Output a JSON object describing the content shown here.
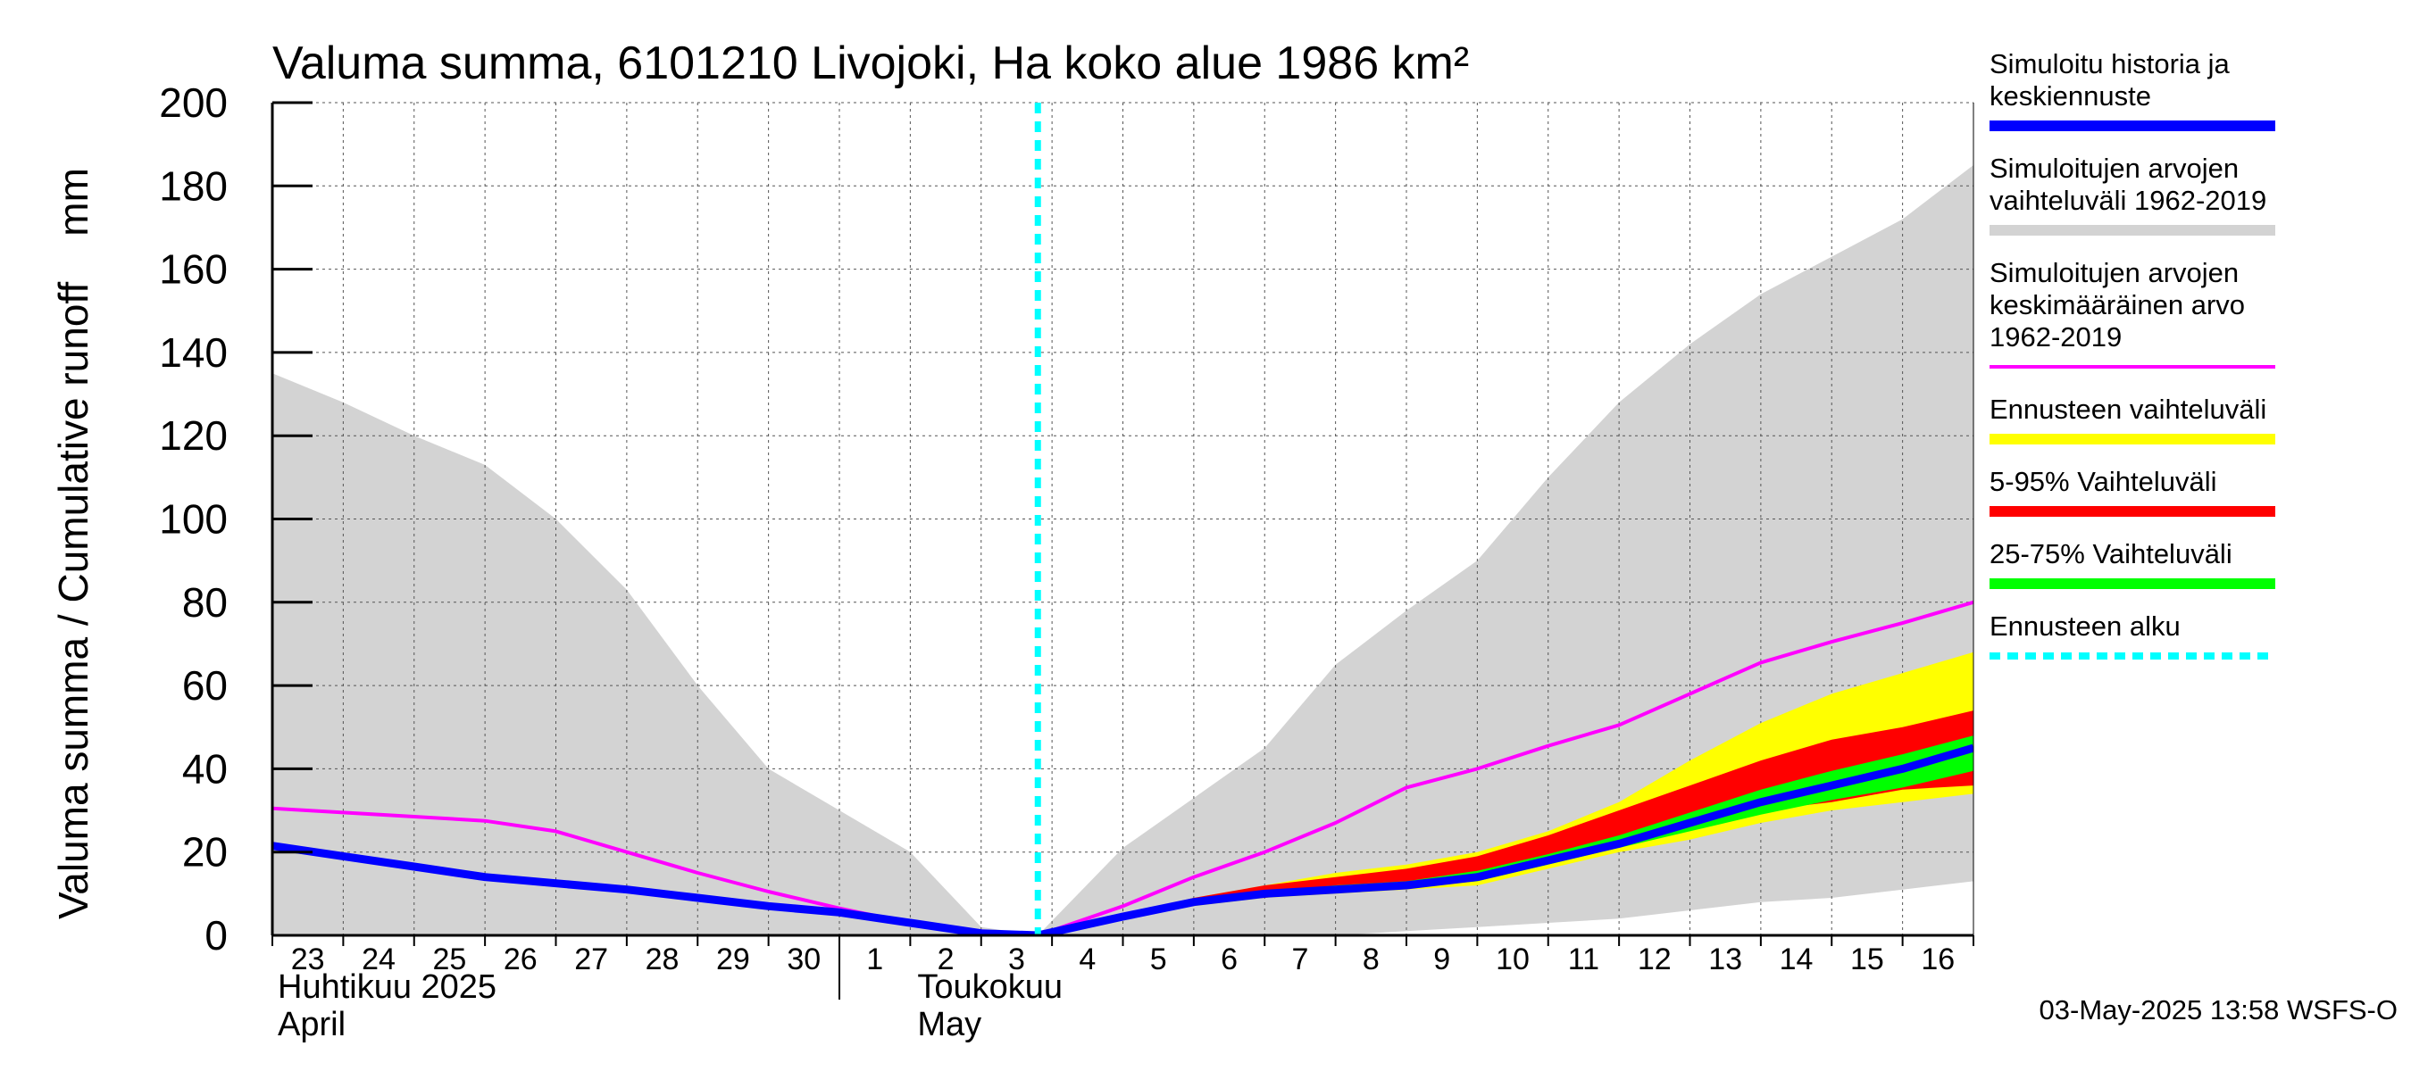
{
  "chart_data": {
    "type": "area",
    "title": "Valuma summa, 6101210 Livojoki, Ha koko alue 1986 km²",
    "ylabel": "Valuma summa / Cumulative runoff    mm",
    "ylim": [
      0,
      200
    ],
    "yticks": [
      0,
      20,
      40,
      60,
      80,
      100,
      120,
      140,
      160,
      180,
      200
    ],
    "day_labels": [
      "23",
      "24",
      "25",
      "26",
      "27",
      "28",
      "29",
      "30",
      "1",
      "2",
      "3",
      "4",
      "5",
      "6",
      "7",
      "8",
      "9",
      "10",
      "11",
      "12",
      "13",
      "14",
      "15",
      "16"
    ],
    "month_labels": [
      {
        "fi": "Huhtikuu  2025",
        "en": "April"
      },
      {
        "fi": "Toukokuu",
        "en": "May"
      }
    ],
    "forecast_start_day": 10.8,
    "x": [
      0,
      1,
      2,
      3,
      4,
      5,
      6,
      7,
      8,
      9,
      10,
      10.8,
      12,
      13,
      14,
      15,
      16,
      17,
      18,
      19,
      20,
      21,
      22,
      23,
      24
    ],
    "series": [
      {
        "name": "Simuloitujen arvojen vaihteluväli 1962-2019 (upper)",
        "color": "#d3d3d3",
        "values": [
          135,
          128,
          120,
          113,
          100,
          83,
          60,
          40,
          30,
          20,
          2,
          0,
          21,
          33,
          45,
          65,
          78,
          90,
          110,
          128,
          142,
          154,
          163,
          172,
          185
        ]
      },
      {
        "name": "Simuloitujen arvojen vaihteluväli 1962-2019 (lower)",
        "color": "#d3d3d3",
        "values": [
          0,
          0,
          0,
          0,
          0,
          0,
          0,
          0,
          0,
          0,
          0,
          0,
          0,
          0,
          0,
          0,
          1,
          2,
          3,
          4,
          6,
          8,
          9,
          11,
          13
        ]
      },
      {
        "name": "Simuloitujen arvojen keskimääräinen arvo 1962-2019",
        "color": "#ff00ff",
        "values": [
          30.5,
          29.5,
          28.5,
          27.5,
          25,
          20,
          15,
          10.5,
          6.5,
          3,
          1,
          0,
          7,
          14,
          20,
          27,
          35.5,
          40,
          45.5,
          50.5,
          58,
          65.5,
          70.5,
          75,
          80
        ]
      },
      {
        "name": "Simuloitu historia ja keskiennuste",
        "color": "#0000ff",
        "values": [
          21.5,
          19,
          16.5,
          14,
          12.5,
          11,
          9,
          7,
          5.5,
          3,
          0.5,
          0,
          4.5,
          8,
          10,
          11,
          12,
          14,
          18,
          22,
          27,
          32,
          36,
          40,
          45
        ]
      },
      {
        "name": "Ennusteen vaihteluväli (max)",
        "color": "#ffff00",
        "values": [
          null,
          null,
          null,
          null,
          null,
          null,
          null,
          null,
          null,
          null,
          null,
          0,
          5,
          9,
          12,
          15,
          17,
          20,
          25,
          32,
          42,
          51,
          58,
          63,
          68
        ]
      },
      {
        "name": "Ennusteen vaihteluväli (min)",
        "color": "#ffff00",
        "values": [
          null,
          null,
          null,
          null,
          null,
          null,
          null,
          null,
          null,
          null,
          null,
          0,
          4,
          7,
          9,
          10,
          11,
          12,
          16,
          20,
          23,
          27,
          30,
          32,
          34
        ]
      },
      {
        "name": "5-95% Vaihteluväli (high)",
        "color": "#ff0000",
        "values": [
          null,
          null,
          null,
          null,
          null,
          null,
          null,
          null,
          null,
          null,
          null,
          0,
          5,
          9,
          12,
          14,
          16,
          19,
          24,
          30,
          36,
          42,
          47,
          50,
          54
        ]
      },
      {
        "name": "5-95% Vaihteluväli (low)",
        "color": "#ff0000",
        "values": [
          null,
          null,
          null,
          null,
          null,
          null,
          null,
          null,
          null,
          null,
          null,
          0,
          4,
          8,
          9,
          11,
          12,
          14,
          18,
          22,
          26,
          30,
          32,
          35,
          36
        ]
      },
      {
        "name": "25-75% Vaihteluväli (high)",
        "color": "#00ff00",
        "values": [
          null,
          null,
          null,
          null,
          null,
          null,
          null,
          null,
          null,
          null,
          null,
          0,
          4.5,
          8.5,
          10.5,
          12,
          13,
          15.5,
          19.5,
          24,
          29.5,
          35,
          39.5,
          43.5,
          48
        ]
      },
      {
        "name": "25-75% Vaihteluväli (low)",
        "color": "#00ff00",
        "values": [
          null,
          null,
          null,
          null,
          null,
          null,
          null,
          null,
          null,
          null,
          null,
          0,
          4,
          7.5,
          9.5,
          10.5,
          11.5,
          13,
          17,
          21,
          25,
          29,
          32.5,
          35.5,
          39.5
        ]
      }
    ]
  },
  "legend": {
    "items": [
      {
        "lines": [
          "Simuloitu historia ja",
          "keskiennuste"
        ],
        "color": "#0000ff",
        "style": "solid"
      },
      {
        "lines": [
          "Simuloitujen arvojen",
          "vaihteluväli 1962-2019"
        ],
        "color": "#d3d3d3",
        "style": "solid"
      },
      {
        "lines": [
          "Simuloitujen arvojen",
          "keskimääräinen arvo",
          "   1962-2019"
        ],
        "color": "#ff00ff",
        "style": "thin"
      },
      {
        "lines": [
          "Ennusteen vaihteluväli"
        ],
        "color": "#ffff00",
        "style": "solid"
      },
      {
        "lines": [
          "5-95% Vaihteluväli"
        ],
        "color": "#ff0000",
        "style": "solid"
      },
      {
        "lines": [
          "25-75% Vaihteluväli"
        ],
        "color": "#00ff00",
        "style": "solid"
      },
      {
        "lines": [
          "Ennusteen alku"
        ],
        "color": "#00ffff",
        "style": "dashed"
      }
    ]
  },
  "footer": "03-May-2025 13:58 WSFS-O"
}
